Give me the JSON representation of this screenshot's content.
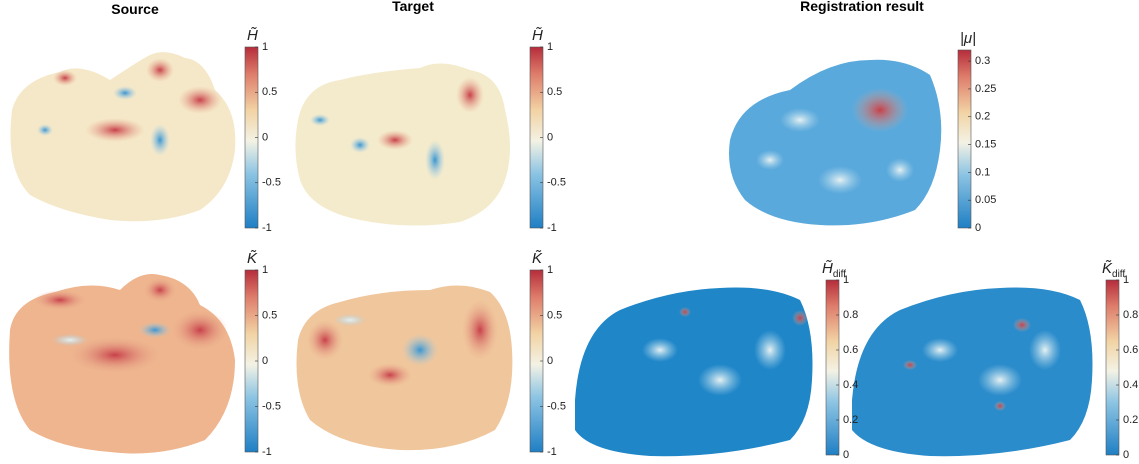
{
  "titles": [
    "Source",
    "Target",
    "Registration result"
  ],
  "colorbars": [
    {
      "label": "H̃",
      "lim": [
        -1,
        1
      ],
      "ticks": [
        1,
        0.5,
        0,
        -0.5,
        -1
      ]
    },
    {
      "label": "H̃",
      "lim": [
        -1,
        1
      ],
      "ticks": [
        1,
        0.5,
        0,
        -0.5,
        -1
      ]
    },
    {
      "label": "|μ|",
      "lim": [
        0,
        0.32
      ],
      "ticks": [
        0.3,
        0.25,
        0.2,
        0.15,
        0.1,
        0.05,
        0
      ]
    },
    {
      "label": "K̃",
      "lim": [
        -1,
        1
      ],
      "ticks": [
        1,
        0.5,
        0,
        -0.5,
        -1
      ]
    },
    {
      "label": "K̃",
      "lim": [
        -1,
        1
      ],
      "ticks": [
        1,
        0.5,
        0,
        -0.5,
        -1
      ]
    },
    {
      "label": "H̃",
      "subscript": "diff",
      "lim": [
        0,
        1
      ],
      "ticks": [
        1,
        0.8,
        0.6,
        0.4,
        0.2,
        0
      ]
    },
    {
      "label": "K̃",
      "subscript": "diff",
      "lim": [
        0,
        1
      ],
      "ticks": [
        1,
        0.8,
        0.6,
        0.4,
        0.2,
        0
      ]
    }
  ]
}
